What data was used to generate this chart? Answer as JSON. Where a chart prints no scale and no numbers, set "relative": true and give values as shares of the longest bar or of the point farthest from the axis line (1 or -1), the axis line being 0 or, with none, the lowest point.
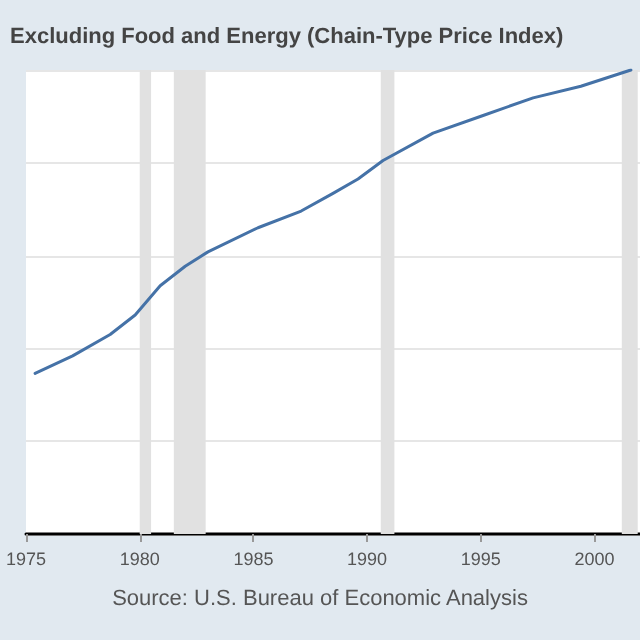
{
  "chart_data": {
    "type": "line",
    "title": "Excluding Food and Energy (Chain-Type Price Index)",
    "relative": true,
    "x": [
      1975.4,
      1977.05,
      1978.7,
      1979.8,
      1980.9,
      1982.0,
      1983.0,
      1985.2,
      1987.1,
      1988.5,
      1989.6,
      1990.7,
      1992.9,
      1995.1,
      1997.3,
      1999.4,
      2001.6
    ],
    "series": [
      {
        "color": "#4572a7",
        "values": [
          0.346,
          0.384,
          0.43,
          0.472,
          0.535,
          0.577,
          0.608,
          0.66,
          0.696,
          0.734,
          0.765,
          0.805,
          0.864,
          0.902,
          0.94,
          0.965,
          1.0
        ]
      }
    ],
    "xlim": [
      1975,
      2002
    ],
    "xticks": [
      1975,
      1980,
      1985,
      1990,
      1995,
      2000
    ],
    "bands": [
      {
        "axis": "x",
        "from": 1980.0,
        "to": 1980.5,
        "color": "#e1e1e1"
      },
      {
        "axis": "x",
        "from": 1981.5,
        "to": 1982.9,
        "color": "#e1e1e1"
      },
      {
        "axis": "x",
        "from": 1990.6,
        "to": 1991.2,
        "color": "#e1e1e1"
      },
      {
        "axis": "x",
        "from": 2001.2,
        "to": 2001.9,
        "color": "#e1e1e1"
      }
    ],
    "grid": "y",
    "marker": "none",
    "line_style": "solid",
    "annotations": [
      "Source: U.S. Bureau of Economic Analysis"
    ]
  }
}
